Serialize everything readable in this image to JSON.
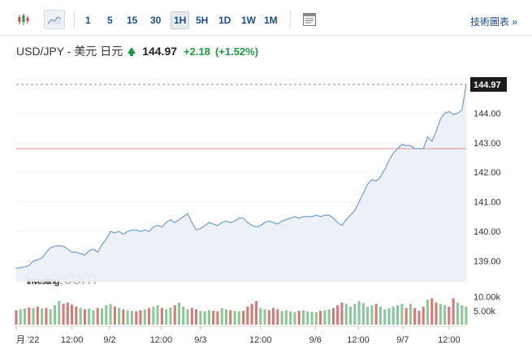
{
  "toolbar": {
    "timeframes": [
      "1",
      "5",
      "15",
      "30",
      "1H",
      "5H",
      "1D",
      "1W",
      "1M"
    ],
    "selected_timeframe": "1H",
    "technical_chart_label": "技術圖表 »",
    "icons": [
      "candlestick-icon",
      "area-chart-icon",
      "report-icon"
    ]
  },
  "quote": {
    "pair": "USD/JPY - 美元 日元",
    "price": "144.97",
    "change": "+2.18",
    "change_pct": "(+1.52%)",
    "direction": "up"
  },
  "colors": {
    "up": "#1a9a40",
    "down": "#c0504d",
    "line": "#6f9fcc",
    "area": "#eaf0f7",
    "last_price_bg": "#1c1c1c",
    "ref_line": "#e58c8c",
    "link": "#1a4a8c"
  },
  "watermark": {
    "brand": "investing",
    "suffix": ".com"
  },
  "chart_data": {
    "type": "area",
    "y_ticks": [
      "144.00",
      "143.00",
      "142.00",
      "141.00",
      "140.00",
      "139.00"
    ],
    "ylim": [
      138.3,
      145.3
    ],
    "last_price_label": "144.97",
    "reference_level": 142.8,
    "x_tick_labels": [
      "月 '22",
      "12:00",
      "9/2",
      "12:00",
      "9/3",
      "12:00",
      "9/6",
      "12:00",
      "9/7",
      "12:00"
    ],
    "x_tick_positions": [
      0,
      13,
      21.8,
      33.8,
      43,
      57,
      69.8,
      79.8,
      90.2,
      101
    ],
    "x_count": 106,
    "close": [
      138.75,
      138.78,
      138.8,
      138.85,
      139.0,
      139.05,
      139.1,
      139.3,
      139.45,
      139.5,
      139.52,
      139.5,
      139.4,
      139.3,
      139.3,
      139.25,
      139.2,
      139.35,
      139.4,
      139.3,
      139.55,
      139.75,
      140.0,
      139.95,
      140.0,
      139.9,
      140.0,
      140.05,
      140.05,
      140.0,
      140.05,
      140.0,
      140.15,
      140.2,
      140.15,
      140.3,
      140.4,
      140.3,
      140.4,
      140.5,
      140.6,
      140.3,
      140.05,
      140.1,
      140.2,
      140.3,
      140.25,
      140.2,
      140.3,
      140.35,
      140.3,
      140.35,
      140.45,
      140.45,
      140.3,
      140.2,
      140.15,
      140.2,
      140.3,
      140.35,
      140.3,
      140.25,
      140.35,
      140.4,
      140.45,
      140.5,
      140.45,
      140.5,
      140.5,
      140.5,
      140.55,
      140.5,
      140.55,
      140.55,
      140.45,
      140.3,
      140.2,
      140.4,
      140.55,
      140.7,
      141.0,
      141.3,
      141.6,
      141.75,
      141.7,
      141.85,
      142.1,
      142.4,
      142.65,
      142.8,
      142.95,
      142.9,
      142.9,
      142.8,
      142.8,
      142.8,
      143.2,
      143.05,
      143.4,
      143.8,
      144.0,
      144.05,
      143.95,
      144.0,
      144.1,
      144.97
    ],
    "volume_ticks": [
      "10.00k",
      "5.00k"
    ],
    "volume_max": 14000,
    "volume": [
      5200,
      5500,
      5800,
      6200,
      6000,
      6500,
      5800,
      6000,
      5500,
      7000,
      8500,
      7500,
      8000,
      7200,
      6500,
      6000,
      5500,
      5800,
      5200,
      6000,
      5800,
      7000,
      7500,
      6500,
      6000,
      5500,
      5200,
      5000,
      4800,
      5200,
      5500,
      6000,
      6500,
      7000,
      6000,
      5500,
      6200,
      7000,
      8000,
      6500,
      5500,
      6000,
      5500,
      5000,
      4800,
      5200,
      5000,
      4800,
      6000,
      5500,
      5200,
      5000,
      4800,
      5000,
      6500,
      7500,
      8500,
      6000,
      5500,
      5200,
      6000,
      5500,
      5000,
      5200,
      4800,
      4500,
      5000,
      5200,
      4800,
      4600,
      4500,
      5000,
      5200,
      5500,
      6000,
      7000,
      8000,
      7500,
      6500,
      7500,
      8500,
      7800,
      6500,
      7000,
      7500,
      6500,
      5500,
      6000,
      6500,
      7000,
      7500,
      6000,
      7500,
      6000,
      5000,
      6500,
      9000,
      9500,
      8000,
      7500,
      7000,
      6500,
      9500,
      8000,
      7000,
      6500
    ],
    "volume_dir": [
      "down",
      "up",
      "up",
      "down",
      "up",
      "down",
      "up",
      "down",
      "up",
      "up",
      "up",
      "down",
      "down",
      "down",
      "down",
      "up",
      "down",
      "up",
      "up",
      "down",
      "up",
      "up",
      "up",
      "down",
      "up",
      "down",
      "up",
      "up",
      "down",
      "down",
      "up",
      "down",
      "up",
      "up",
      "down",
      "up",
      "up",
      "down",
      "up",
      "up",
      "up",
      "down",
      "down",
      "up",
      "up",
      "up",
      "down",
      "down",
      "up",
      "up",
      "down",
      "up",
      "up",
      "down",
      "down",
      "down",
      "down",
      "up",
      "up",
      "down",
      "down",
      "down",
      "up",
      "up",
      "up",
      "up",
      "down",
      "up",
      "up",
      "up",
      "up",
      "down",
      "up",
      "up",
      "down",
      "down",
      "down",
      "up",
      "up",
      "up",
      "up",
      "up",
      "up",
      "up",
      "down",
      "up",
      "up",
      "up",
      "up",
      "up",
      "up",
      "down",
      "up",
      "down",
      "down",
      "down",
      "up",
      "down",
      "down",
      "up",
      "up",
      "down",
      "down",
      "up",
      "up",
      "up"
    ]
  }
}
